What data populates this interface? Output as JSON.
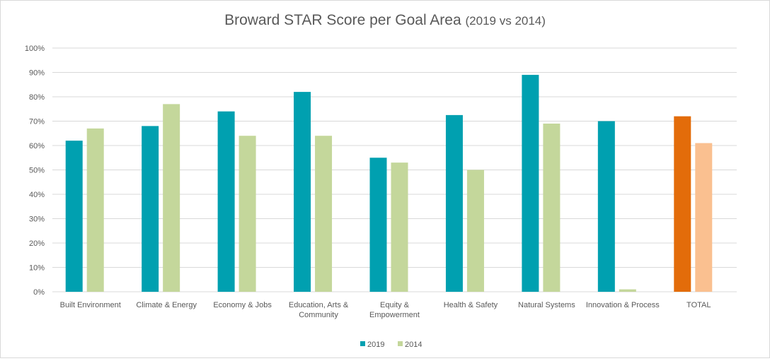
{
  "chart_data": {
    "type": "bar",
    "title": "Broward STAR Score per Goal Area",
    "subtitle": "(2019 vs 2014)",
    "xlabel": "",
    "ylabel": "",
    "ylim": [
      0,
      100
    ],
    "yticks": [
      "0%",
      "10%",
      "20%",
      "30%",
      "40%",
      "50%",
      "60%",
      "70%",
      "80%",
      "90%",
      "100%"
    ],
    "grid": true,
    "legend_placement": "bottom",
    "categories": [
      [
        "Built Environment"
      ],
      [
        "Climate & Energy"
      ],
      [
        "Economy & Jobs"
      ],
      [
        "Education, Arts &",
        "Community"
      ],
      [
        "Equity &",
        "Empowerment"
      ],
      [
        "Health & Safety"
      ],
      [
        "Natural Systems"
      ],
      [
        "Innovation & Process"
      ],
      [
        "TOTAL"
      ]
    ],
    "series": [
      {
        "name": "2019",
        "color": "#00A0B0",
        "highlight_color": "#E36C0A",
        "values": [
          62,
          68,
          74,
          82,
          55,
          72.5,
          89,
          70,
          72
        ]
      },
      {
        "name": "2014",
        "color": "#C4D79B",
        "highlight_color": "#FAC090",
        "values": [
          67,
          77,
          64,
          64,
          53,
          50,
          69,
          1,
          61
        ]
      }
    ],
    "highlighted_category": "TOTAL"
  }
}
